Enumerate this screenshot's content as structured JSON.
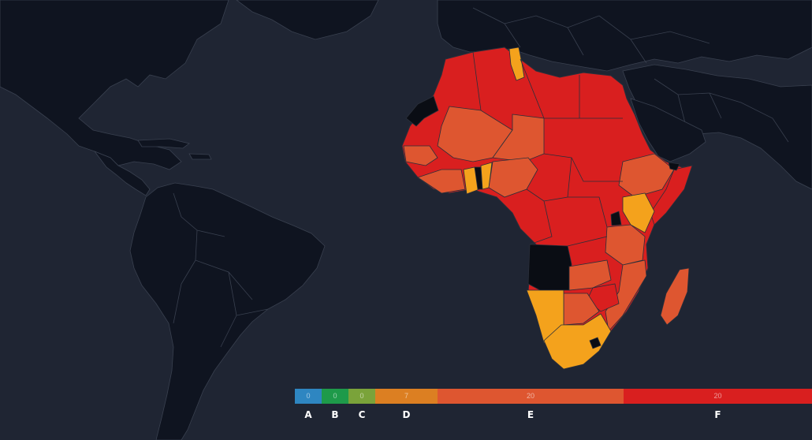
{
  "colors": {
    "ocean": "#1f2533",
    "land": "#0f1420",
    "border": "#39404f",
    "grade_a": "#2e86c1",
    "grade_b": "#1e9a4a",
    "grade_c": "#7aa33a",
    "grade_d": "#dc7f22",
    "grade_e": "#de5630",
    "grade_f": "#d91f1f",
    "yellow": "#f4a21c",
    "no_data": "#0a0d14"
  },
  "legend": [
    {
      "grade": "A",
      "count": "0",
      "color": "#2e86c1"
    },
    {
      "grade": "B",
      "count": "0",
      "color": "#1e9a4a"
    },
    {
      "grade": "C",
      "count": "0",
      "color": "#7aa33a"
    },
    {
      "grade": "D",
      "count": "7",
      "color": "#dc7f22"
    },
    {
      "grade": "E",
      "count": "20",
      "color": "#de5630"
    },
    {
      "grade": "F",
      "count": "20",
      "color": "#d91f1f"
    }
  ]
}
